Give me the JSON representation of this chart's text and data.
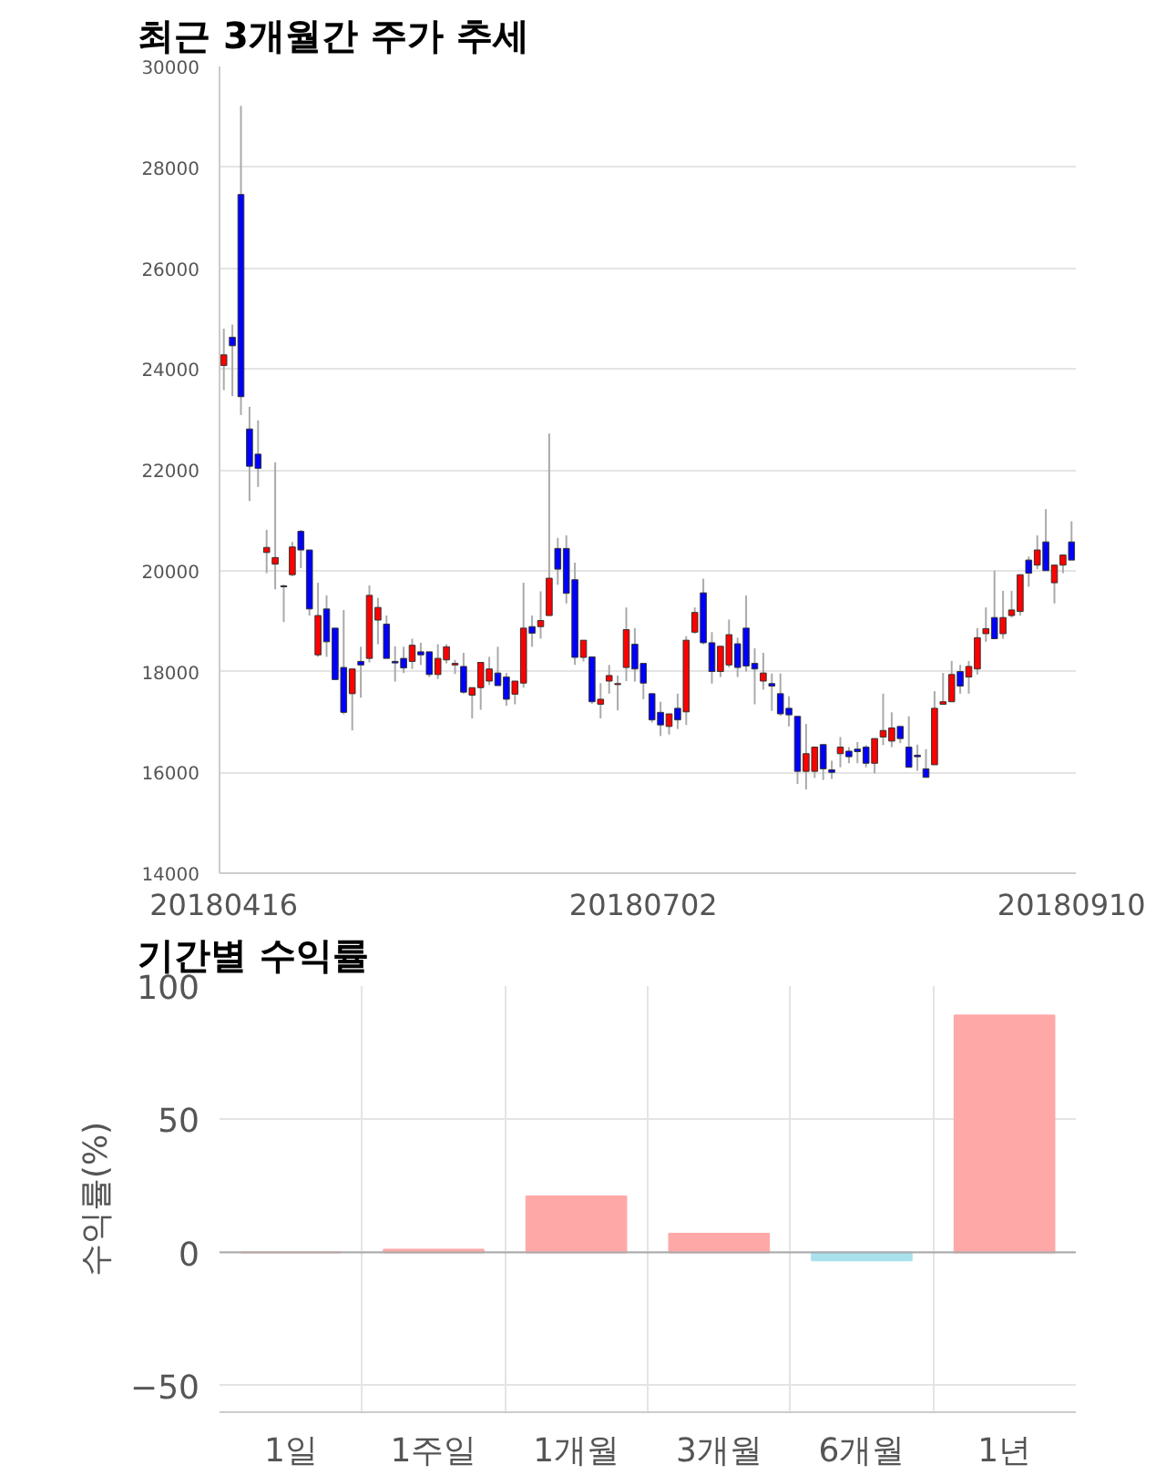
{
  "chart_data": [
    {
      "type": "candlestick",
      "title": "최근 3개월간 주가 추세",
      "categories": [
        "20180416",
        null,
        null,
        null,
        null,
        null,
        null,
        null,
        null,
        null,
        null,
        null,
        null,
        null,
        null,
        null,
        null,
        null,
        null,
        null,
        null,
        null,
        null,
        null,
        null,
        null,
        null,
        null,
        null,
        null,
        null,
        null,
        null,
        null,
        null,
        null,
        null,
        null,
        null,
        null,
        null,
        null,
        null,
        null,
        null,
        null,
        null,
        null,
        null,
        "20180702",
        null,
        null,
        null,
        null,
        null,
        null,
        null,
        null,
        null,
        null,
        null,
        null,
        null,
        null,
        null,
        null,
        null,
        null,
        null,
        null,
        null,
        null,
        null,
        null,
        null,
        null,
        null,
        null,
        null,
        null,
        null,
        null,
        null,
        null,
        null,
        null,
        null,
        null,
        null,
        null,
        null,
        null,
        null,
        null,
        null,
        null,
        null,
        null,
        null,
        "20180910"
      ],
      "ohlc": [
        [
          24070,
          24800,
          23580,
          24280
        ],
        [
          24630,
          24880,
          23460,
          24460
        ],
        [
          27460,
          29220,
          23090,
          23450
        ],
        [
          22810,
          23250,
          21380,
          22070
        ],
        [
          22310,
          22980,
          21660,
          22030
        ],
        [
          20360,
          20810,
          19950,
          20460
        ],
        [
          20130,
          22150,
          19630,
          20260
        ],
        [
          19700,
          19720,
          18980,
          19680
        ],
        [
          19920,
          20570,
          19890,
          20470
        ],
        [
          20780,
          20810,
          20050,
          20410
        ],
        [
          20410,
          20410,
          19110,
          19240
        ],
        [
          18330,
          19760,
          18290,
          19110
        ],
        [
          19240,
          19510,
          18290,
          18590
        ],
        [
          18860,
          18860,
          17840,
          17840
        ],
        [
          18080,
          19220,
          17150,
          17190
        ],
        [
          17560,
          18050,
          16830,
          18050
        ],
        [
          18200,
          18490,
          17480,
          18130
        ],
        [
          18260,
          19710,
          18180,
          19510
        ],
        [
          19020,
          19460,
          18540,
          19270
        ],
        [
          18940,
          19110,
          18260,
          18260
        ],
        [
          18200,
          18500,
          17800,
          18170
        ],
        [
          18260,
          18490,
          17970,
          18070
        ],
        [
          18200,
          18650,
          18050,
          18520
        ],
        [
          18390,
          18570,
          18130,
          18330
        ],
        [
          18390,
          18390,
          17890,
          17940
        ],
        [
          17940,
          18540,
          17850,
          18260
        ],
        [
          18230,
          18540,
          18160,
          18490
        ],
        [
          18130,
          18230,
          17950,
          18160
        ],
        [
          18100,
          18370,
          17560,
          17590
        ],
        [
          17530,
          17680,
          17070,
          17680
        ],
        [
          17680,
          18180,
          17240,
          18180
        ],
        [
          17810,
          18290,
          17730,
          18050
        ],
        [
          17970,
          18490,
          17720,
          17720
        ],
        [
          17890,
          17970,
          17320,
          17450
        ],
        [
          17550,
          17810,
          17350,
          17810
        ],
        [
          17770,
          19760,
          17680,
          18860
        ],
        [
          18890,
          19110,
          18490,
          18760
        ],
        [
          18890,
          19590,
          18650,
          19010
        ],
        [
          19110,
          22720,
          19110,
          19850
        ],
        [
          20440,
          20650,
          19720,
          20030
        ],
        [
          20440,
          20700,
          19350,
          19550
        ],
        [
          19820,
          20160,
          18130,
          18280
        ],
        [
          18280,
          18620,
          18200,
          18620
        ],
        [
          18290,
          18290,
          17360,
          17400
        ],
        [
          17350,
          17770,
          17070,
          17450
        ],
        [
          17810,
          18130,
          17560,
          17920
        ],
        [
          17740,
          17920,
          17230,
          17760
        ],
        [
          18080,
          19270,
          17810,
          18830
        ],
        [
          18540,
          18860,
          17800,
          18050
        ],
        [
          18160,
          18160,
          17450,
          17770
        ],
        [
          17560,
          17560,
          16990,
          17040
        ],
        [
          17190,
          17400,
          16720,
          16940
        ],
        [
          16910,
          17160,
          16750,
          17160
        ],
        [
          17270,
          17560,
          16860,
          17040
        ],
        [
          17200,
          18700,
          16940,
          18620
        ],
        [
          18780,
          19270,
          18750,
          19170
        ],
        [
          19560,
          19840,
          18540,
          18570
        ],
        [
          18570,
          18780,
          17760,
          18000
        ],
        [
          18000,
          18500,
          17890,
          18500
        ],
        [
          18130,
          19030,
          18080,
          18730
        ],
        [
          18550,
          18670,
          17890,
          18080
        ],
        [
          18860,
          19510,
          18000,
          18110
        ],
        [
          18160,
          18460,
          17350,
          18050
        ],
        [
          17810,
          18370,
          17640,
          17970
        ],
        [
          17760,
          17960,
          17220,
          17710
        ],
        [
          17560,
          17960,
          17120,
          17160
        ],
        [
          17270,
          17510,
          16910,
          17140
        ],
        [
          17110,
          17110,
          15770,
          16020
        ],
        [
          16020,
          16960,
          15660,
          16370
        ],
        [
          16020,
          16500,
          15890,
          16500
        ],
        [
          16550,
          16550,
          15850,
          16070
        ],
        [
          16050,
          16230,
          15870,
          16000
        ],
        [
          16370,
          16700,
          16100,
          16500
        ],
        [
          16420,
          16500,
          16180,
          16310
        ],
        [
          16460,
          16600,
          16180,
          16410
        ],
        [
          16500,
          16540,
          16100,
          16180
        ],
        [
          16180,
          16670,
          15980,
          16670
        ],
        [
          16700,
          17560,
          16540,
          16830
        ],
        [
          16620,
          17190,
          16500,
          16880
        ],
        [
          16910,
          16910,
          16580,
          16670
        ],
        [
          16500,
          17110,
          16100,
          16100
        ],
        [
          16340,
          16550,
          16030,
          16310
        ],
        [
          16070,
          16460,
          15900,
          15900
        ],
        [
          16150,
          17610,
          16150,
          17270
        ],
        [
          17350,
          17970,
          17350,
          17400
        ],
        [
          17400,
          18210,
          17400,
          17940
        ],
        [
          18000,
          18130,
          17560,
          17710
        ],
        [
          17890,
          18210,
          17560,
          18100
        ],
        [
          18050,
          18860,
          17940,
          18670
        ],
        [
          18750,
          19270,
          18590,
          18850
        ],
        [
          19070,
          20000,
          18650,
          18650
        ],
        [
          18750,
          19600,
          18650,
          19070
        ],
        [
          19110,
          19600,
          19070,
          19220
        ],
        [
          19190,
          19920,
          19110,
          19920
        ],
        [
          20210,
          20280,
          19680,
          19950
        ],
        [
          20110,
          20700,
          20030,
          20410
        ],
        [
          20570,
          21220,
          20000,
          20000
        ],
        [
          19760,
          20110,
          19350,
          20110
        ],
        [
          20110,
          20310,
          19950,
          20310
        ],
        [
          20570,
          20980,
          20210,
          20210
        ]
      ],
      "colors": [
        "#ff0000",
        "#0000ff",
        "#0000ff",
        "#0000ff",
        "#0000ff",
        "#ff0000",
        "#ff0000",
        "#0000ff",
        "#ff0000",
        "#0000ff",
        "#0000ff",
        "#ff0000",
        "#0000ff",
        "#0000ff",
        "#0000ff",
        "#ff0000",
        "#0000ff",
        "#ff0000",
        "#ff0000",
        "#0000ff",
        "#0000ff",
        "#0000ff",
        "#ff0000",
        "#0000ff",
        "#0000ff",
        "#ff0000",
        "#ff0000",
        "#ff0000",
        "#0000ff",
        "#ff0000",
        "#ff0000",
        "#ff0000",
        "#0000ff",
        "#0000ff",
        "#ff0000",
        "#ff0000",
        "#0000ff",
        "#ff0000",
        "#ff0000",
        "#0000ff",
        "#0000ff",
        "#0000ff",
        "#ff0000",
        "#0000ff",
        "#ff0000",
        "#ff0000",
        "#ff0000",
        "#ff0000",
        "#0000ff",
        "#0000ff",
        "#0000ff",
        "#0000ff",
        "#ff0000",
        "#0000ff",
        "#ff0000",
        "#ff0000",
        "#0000ff",
        "#0000ff",
        "#ff0000",
        "#ff0000",
        "#0000ff",
        "#0000ff",
        "#0000ff",
        "#ff0000",
        "#0000ff",
        "#0000ff",
        "#0000ff",
        "#0000ff",
        "#ff0000",
        "#ff0000",
        "#0000ff",
        "#0000ff",
        "#ff0000",
        "#0000ff",
        "#0000ff",
        "#0000ff",
        "#ff0000",
        "#ff0000",
        "#ff0000",
        "#0000ff",
        "#0000ff",
        "#0000ff",
        "#0000ff",
        "#ff0000",
        "#ff0000",
        "#ff0000",
        "#0000ff",
        "#ff0000",
        "#ff0000",
        "#ff0000",
        "#0000ff",
        "#ff0000",
        "#ff0000",
        "#ff0000",
        "#0000ff",
        "#ff0000",
        "#0000ff",
        "#ff0000",
        "#ff0000",
        "#0000ff"
      ],
      "ylim": [
        14000,
        30000
      ],
      "yticks": [
        14000,
        16000,
        18000,
        20000,
        22000,
        24000,
        26000,
        28000,
        30000
      ],
      "grid": "y"
    },
    {
      "type": "bar",
      "title": "기간별 수익률",
      "ylabel": "수익률(%)",
      "categories": [
        "1일",
        "1주일",
        "1개월",
        "3개월",
        "6개월",
        "1년"
      ],
      "values": [
        0,
        1,
        21,
        7,
        -3,
        89
      ],
      "colors": [
        "#ffa8a8",
        "#ffa8a8",
        "#ffa8a8",
        "#ffa8a8",
        "#a8e0ec",
        "#ffa8a8"
      ],
      "ylim": [
        -60,
        100
      ],
      "yticks": [
        -50,
        0,
        50,
        100
      ],
      "grid": true
    }
  ]
}
